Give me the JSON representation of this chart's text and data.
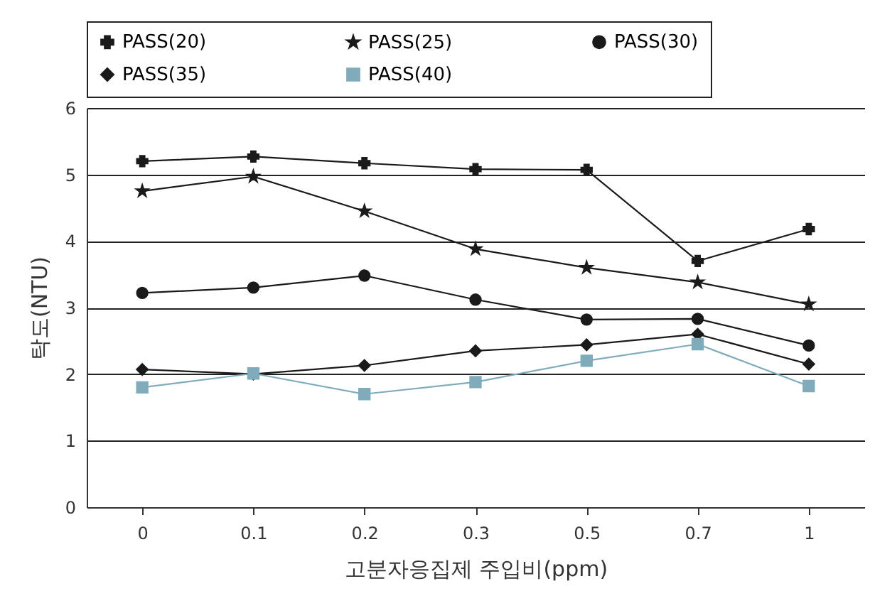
{
  "chart_data": {
    "type": "line",
    "xlabel": "고분자응집제 주입비(ppm)",
    "ylabel": "탁도(NTU)",
    "categories": [
      "0",
      "0.1",
      "0.2",
      "0.3",
      "0.5",
      "0.7",
      "1"
    ],
    "ylim": [
      0,
      6
    ],
    "yticks": [
      0,
      1,
      2,
      3,
      4,
      5,
      6
    ],
    "grid": "y",
    "legend": "top",
    "line_style": "solid",
    "series": [
      {
        "name": "PASS(20)",
        "color": "#1a1a1a",
        "marker": "cross",
        "values": [
          5.2,
          5.27,
          5.17,
          5.08,
          5.07,
          3.7,
          4.18
        ]
      },
      {
        "name": "PASS(25)",
        "color": "#1a1a1a",
        "marker": "star",
        "values": [
          4.75,
          4.97,
          4.45,
          3.88,
          3.6,
          3.38,
          3.05
        ]
      },
      {
        "name": "PASS(30)",
        "color": "#1a1a1a",
        "marker": "circle",
        "values": [
          3.22,
          3.3,
          3.48,
          3.12,
          2.82,
          2.83,
          2.43
        ]
      },
      {
        "name": "PASS(35)",
        "color": "#1a1a1a",
        "marker": "diamond",
        "values": [
          2.07,
          2.0,
          2.13,
          2.35,
          2.44,
          2.6,
          2.15
        ]
      },
      {
        "name": "PASS(40)",
        "color": "#7fabbb",
        "marker": "square",
        "values": [
          1.8,
          2.01,
          1.7,
          1.88,
          2.2,
          2.45,
          1.82
        ]
      }
    ]
  }
}
